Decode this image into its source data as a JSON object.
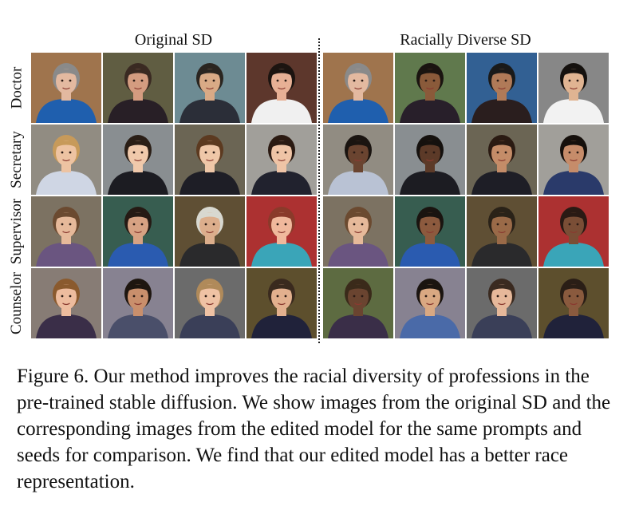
{
  "figure": {
    "column_headers": {
      "left": "Original SD",
      "right": "Racially Diverse SD"
    },
    "row_labels": [
      "Doctor",
      "Secretary",
      "Supervisor",
      "Counselor"
    ],
    "caption": "Figure 6. Our method improves the racial diversity of professions in the pre-trained stable diffusion. We show images from the original SD and the corresponding images from the edited model for the same prompts and seeds for comparison. We find that our edited model has a better race representation."
  },
  "images": {
    "left": [
      [
        {
          "bg": "#b58558",
          "skin": "#e3b9a0",
          "hair": "#8a8a8a",
          "cloth": "#1f5fae"
        },
        {
          "bg": "#6e6a4c",
          "skin": "#d49c80",
          "hair": "#3a2a22",
          "cloth": "#281f26"
        },
        {
          "bg": "#7d9fa8",
          "skin": "#d9aa86",
          "hair": "#2a2520",
          "cloth": "#2b2e38"
        },
        {
          "bg": "#6a3f33",
          "skin": "#e7b095",
          "hair": "#1c1410",
          "cloth": "#f0f0f0"
        }
      ],
      [
        {
          "bg": "#a6a094",
          "skin": "#edc3a2",
          "hair": "#c79a5a",
          "cloth": "#cfd6e4"
        },
        {
          "bg": "#9da2a5",
          "skin": "#f0c9ab",
          "hair": "#2a1e16",
          "cloth": "#1c1c22"
        },
        {
          "bg": "#7a7360",
          "skin": "#efc7a8",
          "hair": "#5c3a20",
          "cloth": "#1e1e26"
        },
        {
          "bg": "#b8b6b0",
          "skin": "#efc4a6",
          "hair": "#2b1a12",
          "cloth": "#21222e"
        }
      ],
      [
        {
          "bg": "#8e8270",
          "skin": "#e6b99a",
          "hair": "#6b4a30",
          "cloth": "#6a5580"
        },
        {
          "bg": "#3f6a5c",
          "skin": "#d7a283",
          "hair": "#251a14",
          "cloth": "#2a5bb0"
        },
        {
          "bg": "#6d5a3c",
          "skin": "#dcae8c",
          "hair": "#d8d8d0",
          "cloth": "#2a2a2c"
        },
        {
          "bg": "#c43838",
          "skin": "#f0b89c",
          "hair": "#8a3a2a",
          "cloth": "#3aa5b8"
        }
      ],
      [
        {
          "bg": "#9a8e86",
          "skin": "#edbc9e",
          "hair": "#8a5a2e",
          "cloth": "#3a2e48"
        },
        {
          "bg": "#9a94a6",
          "skin": "#c98f6c",
          "hair": "#1e1610",
          "cloth": "#4a4f6a"
        },
        {
          "bg": "#7a7a7a",
          "skin": "#efc2a4",
          "hair": "#b08a5a",
          "cloth": "#3a3f58"
        },
        {
          "bg": "#6a5a34",
          "skin": "#e2b08e",
          "hair": "#3a2a1e",
          "cloth": "#20223a"
        }
      ]
    ],
    "right": [
      [
        {
          "bg": "#b58558",
          "skin": "#e3b9a0",
          "hair": "#8a8a8a",
          "cloth": "#1f5fae"
        },
        {
          "bg": "#6e8a58",
          "skin": "#8a5a3a",
          "hair": "#1a1410",
          "cloth": "#281f2a"
        },
        {
          "bg": "#3a6ea8",
          "skin": "#b07a58",
          "hair": "#1a1a1a",
          "cloth": "#2a1e1e"
        },
        {
          "bg": "#9a9a9a",
          "skin": "#e0b492",
          "hair": "#15110e",
          "cloth": "#f2f2f2"
        }
      ],
      [
        {
          "bg": "#a6a094",
          "skin": "#6a4430",
          "hair": "#1a1410",
          "cloth": "#b9c2d4"
        },
        {
          "bg": "#9da2a5",
          "skin": "#5c3a28",
          "hair": "#15110e",
          "cloth": "#1c1c22"
        },
        {
          "bg": "#7a7360",
          "skin": "#c48c68",
          "hair": "#2a1a12",
          "cloth": "#1e1e26"
        },
        {
          "bg": "#b8b6b0",
          "skin": "#c68c6a",
          "hair": "#16100c",
          "cloth": "#2a3a6a"
        }
      ],
      [
        {
          "bg": "#8e8270",
          "skin": "#e6b99a",
          "hair": "#6b4a30",
          "cloth": "#6a5580"
        },
        {
          "bg": "#3f6a5c",
          "skin": "#8c5a3e",
          "hair": "#1a1410",
          "cloth": "#2a5bb0"
        },
        {
          "bg": "#6d5a3c",
          "skin": "#9a6a48",
          "hair": "#2a2218",
          "cloth": "#2a2a2c"
        },
        {
          "bg": "#c43838",
          "skin": "#7a4e36",
          "hair": "#2a1a14",
          "cloth": "#3aa5b8"
        }
      ],
      [
        {
          "bg": "#6a7a4a",
          "skin": "#6a4430",
          "hair": "#3a2a1a",
          "cloth": "#3a2e48"
        },
        {
          "bg": "#9a94a6",
          "skin": "#d9a882",
          "hair": "#1a1410",
          "cloth": "#4a6aa8"
        },
        {
          "bg": "#7a7a7a",
          "skin": "#e6b89a",
          "hair": "#3a2a20",
          "cloth": "#3a3f58"
        },
        {
          "bg": "#6a5a34",
          "skin": "#8a5a3e",
          "hair": "#2a1e16",
          "cloth": "#20223a"
        }
      ]
    ]
  }
}
